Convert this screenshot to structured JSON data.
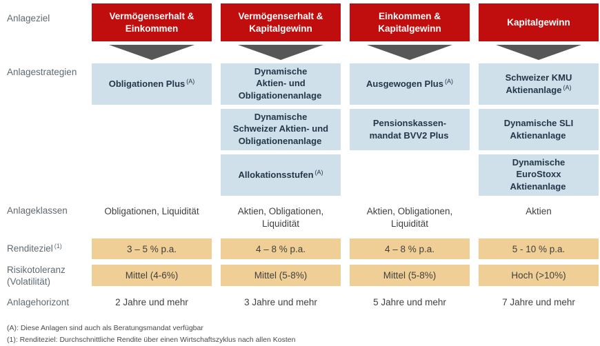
{
  "labels": {
    "anlageziel": "Anlageziel",
    "anlagestrategien": "Anlagestrategien",
    "anlageklassen": "Anlageklassen",
    "renditeziel": "Renditeziel",
    "renditeziel_sup": "(1)",
    "risikotoleranz": "Risikotoleranz\n(Volatilität)",
    "anlagehorizont": "Anlagehorizont"
  },
  "columns": [
    {
      "goal": "Vermögenserhalt &\nEinkommen",
      "strategies": [
        {
          "text": "Obligationen Plus",
          "sup": "(A)"
        }
      ],
      "classes": "Obligationen, Liquidität",
      "return_target": "3 – 5 % p.a.",
      "risk": "Mittel (4-6%)",
      "horizon": "2 Jahre und mehr"
    },
    {
      "goal": "Vermögenserhalt &\nKapitalgewinn",
      "strategies": [
        {
          "text": "Dynamische\nAktien- und\nObligationenanlage",
          "sup": ""
        },
        {
          "text": "Dynamische\nSchweizer Aktien- und\nObligationenanlage",
          "sup": ""
        },
        {
          "text": "Allokationsstufen",
          "sup": "(A)"
        }
      ],
      "classes": "Aktien, Obligationen,\nLiquidität",
      "return_target": "4 – 8 % p.a.",
      "risk": "Mittel (5-8%)",
      "horizon": "3 Jahre und mehr"
    },
    {
      "goal": "Einkommen &\nKapitalgewinn",
      "strategies": [
        {
          "text": "Ausgewogen Plus",
          "sup": "(A)"
        },
        {
          "text": "Pensionskassen-\nmandat BVV2 Plus",
          "sup": ""
        }
      ],
      "classes": "Aktien, Obligationen,\nLiquidität",
      "return_target": "4 – 8 % p.a.",
      "risk": "Mittel (5-8%)",
      "horizon": "5 Jahre und mehr"
    },
    {
      "goal": "Kapitalgewinn",
      "strategies": [
        {
          "text": "Schweizer KMU\nAktienanlage",
          "sup": "(A)"
        },
        {
          "text": "Dynamische SLI\nAktienanlage",
          "sup": ""
        },
        {
          "text": "Dynamische\nEuroStoxx\nAktienanlage",
          "sup": ""
        }
      ],
      "classes": "Aktien",
      "return_target": "5 - 10 % p.a.",
      "risk": "Hoch (>10%)",
      "horizon": "7 Jahre und mehr"
    }
  ],
  "footnotes": [
    "(A): Diese Anlagen sind auch als Beratungsmandat verfügbar",
    "(1): Renditeziel: Durchschnittliche Rendite über einen Wirtschaftszyklus nach allen Kosten"
  ],
  "colors": {
    "header_red": "#c00d0d",
    "strategy_blue": "#cfe0eb",
    "target_tan": "#f0cf97",
    "arrow_gray": "#575757"
  }
}
